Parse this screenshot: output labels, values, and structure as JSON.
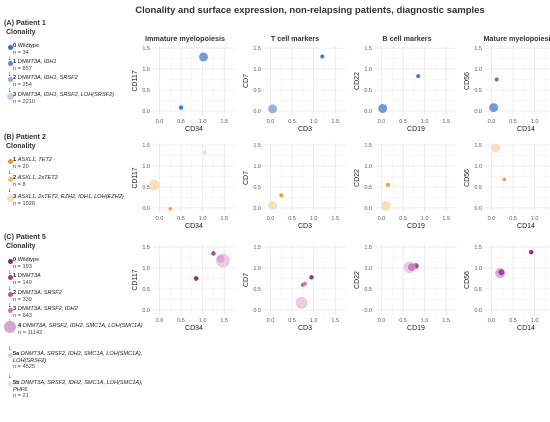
{
  "title": "Clonality and surface expression, non-relapsing patients, diagnostic samples",
  "columns": [
    "Immature myelopoiesis",
    "T cell markers",
    "B cell markers",
    "Mature myelopoiesis"
  ],
  "patients": [
    {
      "heading": "(A) Patient 1",
      "clonality_label": "Clonality",
      "clones": [
        {
          "id": "0",
          "text": "Wildtype",
          "n": "n = 34",
          "color": "#3a6fc4"
        },
        {
          "id": "1",
          "text": "DNMT3A, IDH1",
          "n": "n = 857",
          "color": "#5f87cf"
        },
        {
          "id": "2",
          "text": "DNMT3A, IDH1, SRSF2",
          "n": "n = 254",
          "color": "#8ea9da"
        },
        {
          "id": "3",
          "text": "DNMT3A, IDH1, SRSF2, LOH(SRSF2)",
          "n": "n = 2210",
          "color": "#c4d2ec"
        }
      ]
    },
    {
      "heading": "(B) Patient 2",
      "clonality_label": "Clonality",
      "clones": [
        {
          "id": "1",
          "text": "ASXL1, TET2",
          "n": "n = 20",
          "color": "#e89a30"
        },
        {
          "id": "2",
          "text": "ASXL1, 2xTET2",
          "n": "n = 8",
          "color": "#f0bb6a"
        },
        {
          "id": "3",
          "text": "ASXL1, 2xTET2, EZH2, IDH1, LOH(EZH2)",
          "n": "n = 1928",
          "color": "#f8dcb4"
        }
      ]
    },
    {
      "heading": "(C) Patient 5",
      "clonality_label": "Clonality",
      "clones": [
        {
          "id": "0",
          "text": "Wildtype",
          "n": "n = 193",
          "color": "#7c2b73"
        },
        {
          "id": "1",
          "text": "DNMT3A",
          "n": "n = 149",
          "color": "#9a3c8f"
        },
        {
          "id": "2",
          "text": "DNMT3A, SRSF2",
          "n": "n = 339",
          "color": "#b05aa6"
        },
        {
          "id": "3",
          "text": "DNMT3A, SRSF2, IDH2",
          "n": "n = 643",
          "color": "#c47bbb"
        },
        {
          "id": "4",
          "text": "DNMT3A, SRSF2, IDH2, SMC1A, LOH(SMC1A)",
          "n": "n = 11142",
          "color": "#d9a3d2"
        },
        {
          "id": "5a",
          "text": "DNMT3A, SRSF2, IDH2, SMC1A, LOH(SMC1A), LOH(SRSF2)",
          "n": "n = 4525",
          "color": "#ebc6e6"
        },
        {
          "id": "5b",
          "text": "DNMT3A, SRSF2, IDH2, SMC1A, LOH(SMC1A), PHF6",
          "n": "n = 21",
          "color": "#f4dcf0"
        }
      ]
    }
  ],
  "chart_data": {
    "type": "scatter",
    "axis_ticks": [
      "0.0",
      "0.5",
      "1.0",
      "1.5"
    ],
    "xlim": [
      -0.15,
      1.75
    ],
    "ylim": [
      -0.12,
      1.55
    ],
    "grid": true,
    "panels": [
      {
        "row": 0,
        "col": 0,
        "xlabel": "CD34",
        "ylabel": "CD117",
        "points": [
          {
            "x": 0.5,
            "y": 0.08,
            "color": "#3a6fc4",
            "r": 2.2
          },
          {
            "x": 1.02,
            "y": 1.29,
            "color": "#6a90d2",
            "r": 4.5
          }
        ]
      },
      {
        "row": 0,
        "col": 1,
        "xlabel": "CD3",
        "ylabel": "CD7",
        "points": [
          {
            "x": 1.2,
            "y": 1.3,
            "color": "#3a6fc4",
            "r": 2.0
          },
          {
            "x": 0.05,
            "y": 0.05,
            "color": "#8ea9da",
            "r": 4.5
          }
        ]
      },
      {
        "row": 0,
        "col": 2,
        "xlabel": "CD19",
        "ylabel": "CD22",
        "points": [
          {
            "x": 0.85,
            "y": 0.83,
            "color": "#3a6fc4",
            "r": 2.0
          },
          {
            "x": 0.03,
            "y": 0.06,
            "color": "#6a90d2",
            "r": 4.5
          }
        ]
      },
      {
        "row": 0,
        "col": 3,
        "xlabel": "CD14",
        "ylabel": "CD56",
        "points": [
          {
            "x": 0.12,
            "y": 0.75,
            "color": "#3a6fc4",
            "r": 2.0
          },
          {
            "x": 0.05,
            "y": 0.08,
            "color": "#6a90d2",
            "r": 4.5
          }
        ]
      },
      {
        "row": 1,
        "col": 0,
        "xlabel": "CD34",
        "ylabel": "CD117",
        "points": [
          {
            "x": 1.05,
            "y": 1.32,
            "color": "#f8dcb4",
            "r": 2.0
          },
          {
            "x": 0.25,
            "y": -0.02,
            "color": "#e89a30",
            "r": 1.8
          },
          {
            "x": -0.12,
            "y": 0.55,
            "color": "#f8dcb4",
            "r": 5.5
          }
        ]
      },
      {
        "row": 1,
        "col": 1,
        "xlabel": "CD3",
        "ylabel": "CD7",
        "points": [
          {
            "x": 0.25,
            "y": 0.3,
            "color": "#e89a30",
            "r": 2.0
          },
          {
            "x": 0.05,
            "y": 0.06,
            "color": "#f8dcb4",
            "r": 4.5
          }
        ]
      },
      {
        "row": 1,
        "col": 2,
        "xlabel": "CD19",
        "ylabel": "CD22",
        "points": [
          {
            "x": 0.15,
            "y": 0.55,
            "color": "#e89a30",
            "r": 2.0
          },
          {
            "x": 0.1,
            "y": 0.05,
            "color": "#f8dcb4",
            "r": 5.0
          }
        ]
      },
      {
        "row": 1,
        "col": 3,
        "xlabel": "CD14",
        "ylabel": "CD56",
        "points": [
          {
            "x": 0.1,
            "y": 1.43,
            "color": "#f8dcb4",
            "r": 4.5
          },
          {
            "x": 0.3,
            "y": 0.68,
            "color": "#e89a30",
            "r": 1.8
          }
        ]
      },
      {
        "row": 2,
        "col": 0,
        "xlabel": "CD34",
        "ylabel": "CD117",
        "points": [
          {
            "x": 1.25,
            "y": 1.35,
            "color": "#9a3c8f",
            "r": 2.2
          },
          {
            "x": 0.85,
            "y": 0.75,
            "color": "#7c2b73",
            "r": 2.4
          },
          {
            "x": 1.47,
            "y": 1.18,
            "color": "#ebc6e6",
            "r": 7.0
          },
          {
            "x": 1.42,
            "y": 1.22,
            "color": "#d9a3d2",
            "r": 3.8
          }
        ]
      },
      {
        "row": 2,
        "col": 1,
        "xlabel": "CD3",
        "ylabel": "CD7",
        "points": [
          {
            "x": 0.95,
            "y": 0.78,
            "color": "#7c2b73",
            "r": 2.2
          },
          {
            "x": 0.75,
            "y": 0.6,
            "color": "#b05aa6",
            "r": 2.0
          },
          {
            "x": 0.8,
            "y": 0.63,
            "color": "#c47bbb",
            "r": 2.0
          },
          {
            "x": 0.72,
            "y": 0.17,
            "color": "#ebc6e6",
            "r": 6.0
          }
        ]
      },
      {
        "row": 2,
        "col": 2,
        "xlabel": "CD19",
        "ylabel": "CD22",
        "points": [
          {
            "x": 0.8,
            "y": 1.05,
            "color": "#9a3c8f",
            "r": 2.8
          },
          {
            "x": 0.65,
            "y": 1.02,
            "color": "#ebc6e6",
            "r": 6.0
          },
          {
            "x": 0.7,
            "y": 1.02,
            "color": "#c47bbb",
            "r": 3.8
          }
        ]
      },
      {
        "row": 2,
        "col": 3,
        "xlabel": "CD14",
        "ylabel": "CD56",
        "points": [
          {
            "x": 0.92,
            "y": 1.38,
            "color": "#7c2b73",
            "r": 2.3
          },
          {
            "x": 0.2,
            "y": 0.88,
            "color": "#d9a3d2",
            "r": 5.0
          },
          {
            "x": 0.23,
            "y": 0.9,
            "color": "#9a3c8f",
            "r": 3.0
          }
        ]
      }
    ]
  }
}
